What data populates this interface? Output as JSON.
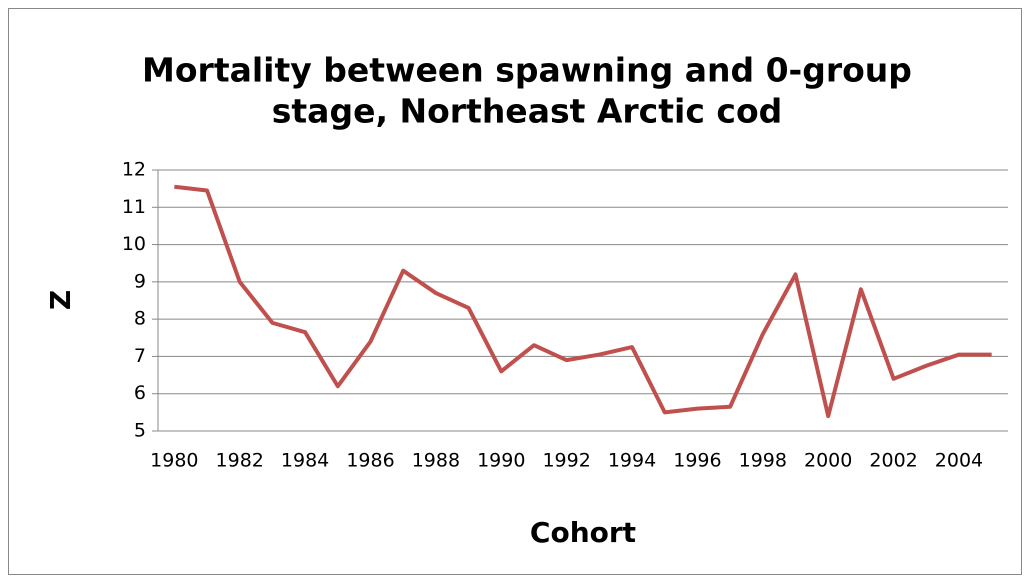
{
  "chart_data": {
    "type": "line",
    "title": [
      "Mortality between spawning and 0-group",
      "stage, Northeast Arctic cod"
    ],
    "x_label": "Cohort",
    "y_label": "Z",
    "x": [
      1980,
      1981,
      1982,
      1983,
      1984,
      1985,
      1986,
      1987,
      1988,
      1989,
      1990,
      1991,
      1992,
      1993,
      1994,
      1995,
      1996,
      1997,
      1998,
      1999,
      2000,
      2001,
      2002,
      2003,
      2004,
      2005
    ],
    "series": [
      {
        "name": "Z",
        "color": "#c0504d",
        "values": [
          11.55,
          11.45,
          9.0,
          7.9,
          7.65,
          6.2,
          7.4,
          9.3,
          8.7,
          8.3,
          6.6,
          7.3,
          6.9,
          7.05,
          7.25,
          5.5,
          5.6,
          5.65,
          7.6,
          9.2,
          5.4,
          8.8,
          6.4,
          6.75,
          7.05,
          7.05
        ]
      }
    ],
    "xlim": [
      1979.5,
      2005.5
    ],
    "xticks": [
      1980,
      1982,
      1984,
      1986,
      1988,
      1990,
      1992,
      1994,
      1996,
      1998,
      2000,
      2002,
      2004
    ],
    "ylim": [
      5,
      12
    ],
    "yticks": [
      5,
      6,
      7,
      8,
      9,
      10,
      11,
      12
    ],
    "grid": true
  }
}
